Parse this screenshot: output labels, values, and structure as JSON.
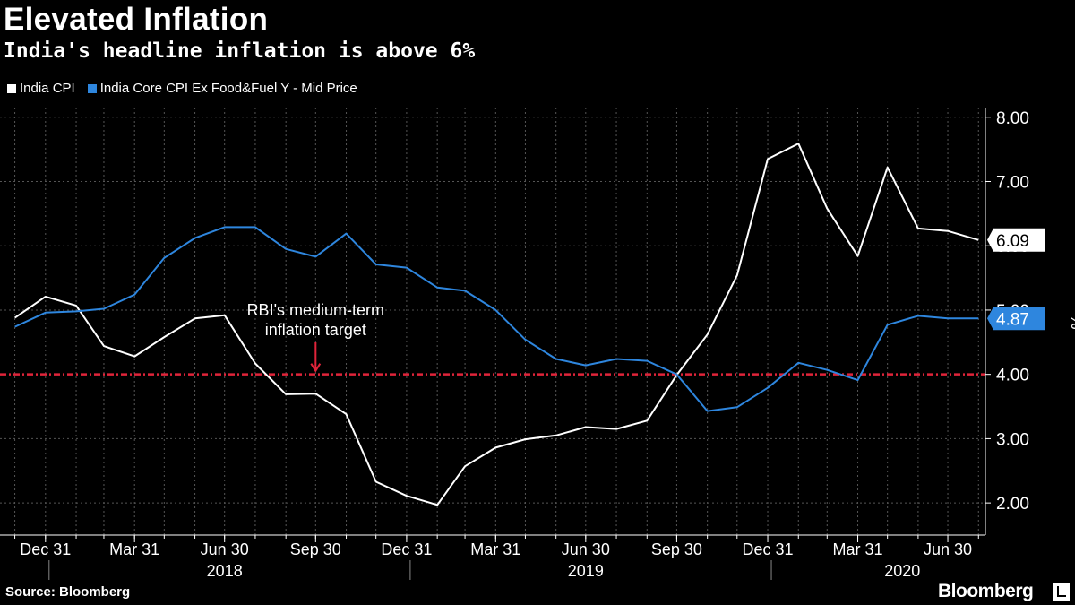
{
  "header": {
    "title": "Elevated Inflation",
    "subtitle": "India's headline inflation is above 6%"
  },
  "footer": {
    "source": "Source: Bloomberg",
    "brand": "Bloomberg"
  },
  "colors": {
    "background": "#000000",
    "india_cpi": "#ffffff",
    "core_cpi": "#2e86de",
    "target_line": "#e0243a",
    "grid": "#555555"
  },
  "chart_data": {
    "type": "line",
    "title": "Elevated Inflation",
    "subtitle": "India's headline inflation is above 6%",
    "ylabel": "%",
    "ylim": [
      1.5,
      8.15
    ],
    "yticks": [
      8.0,
      7.0,
      6.0,
      5.0,
      4.0,
      3.0,
      2.0
    ],
    "ytick_labels": [
      "8.00",
      "7.00",
      "6.00",
      "5.00",
      "4.00",
      "3.00",
      "2.00"
    ],
    "grid": true,
    "legend_position": "top-left",
    "x": [
      "2017-11-30",
      "2017-12-31",
      "2018-01-31",
      "2018-02-28",
      "2018-03-31",
      "2018-04-30",
      "2018-05-31",
      "2018-06-30",
      "2018-07-31",
      "2018-08-31",
      "2018-09-30",
      "2018-10-31",
      "2018-11-30",
      "2018-12-31",
      "2019-01-31",
      "2019-02-28",
      "2019-03-31",
      "2019-04-30",
      "2019-05-31",
      "2019-06-30",
      "2019-07-31",
      "2019-08-31",
      "2019-09-30",
      "2019-10-31",
      "2019-11-30",
      "2019-12-31",
      "2020-01-31",
      "2020-02-29",
      "2020-03-31",
      "2020-04-30",
      "2020-05-31",
      "2020-06-30",
      "2020-07-31"
    ],
    "x_tick_labels": [
      {
        "date": "2017-12-31",
        "label": "Dec 31"
      },
      {
        "date": "2018-03-31",
        "label": "Mar 31"
      },
      {
        "date": "2018-06-30",
        "label": "Jun 30"
      },
      {
        "date": "2018-09-30",
        "label": "Sep 30"
      },
      {
        "date": "2018-12-31",
        "label": "Dec 31"
      },
      {
        "date": "2019-03-31",
        "label": "Mar 31"
      },
      {
        "date": "2019-06-30",
        "label": "Jun 30"
      },
      {
        "date": "2019-09-30",
        "label": "Sep 30"
      },
      {
        "date": "2019-12-31",
        "label": "Dec 31"
      },
      {
        "date": "2020-03-31",
        "label": "Mar 31"
      },
      {
        "date": "2020-06-30",
        "label": "Jun 30"
      }
    ],
    "year_labels": [
      {
        "date": "2018-06-30",
        "label": "2018"
      },
      {
        "date": "2019-06-30",
        "label": "2019"
      },
      {
        "date": "2020-05-15",
        "label": "2020"
      }
    ],
    "year_dividers": [
      "2017-12-31",
      "2018-12-31",
      "2019-12-31"
    ],
    "series": [
      {
        "name": "India CPI",
        "color": "#ffffff",
        "values": [
          4.88,
          5.21,
          5.07,
          4.44,
          4.28,
          4.58,
          4.87,
          4.92,
          4.17,
          3.69,
          3.7,
          3.38,
          2.33,
          2.11,
          1.97,
          2.57,
          2.86,
          2.99,
          3.05,
          3.18,
          3.15,
          3.28,
          3.99,
          4.62,
          5.54,
          7.35,
          7.59,
          6.58,
          5.84,
          7.22,
          6.27,
          6.23,
          6.09
        ],
        "last_value_label": "6.09"
      },
      {
        "name": "India Core CPI Ex Food&Fuel Y - Mid Price",
        "color": "#2e86de",
        "values": [
          4.74,
          4.96,
          4.98,
          5.02,
          5.24,
          5.81,
          6.12,
          6.29,
          6.29,
          5.95,
          5.83,
          6.19,
          5.71,
          5.66,
          5.35,
          5.3,
          5.0,
          4.54,
          4.24,
          4.14,
          4.24,
          4.21,
          4.0,
          3.43,
          3.49,
          3.79,
          4.18,
          4.07,
          3.91,
          4.77,
          4.91,
          4.87,
          4.87
        ],
        "last_value_label": "4.87"
      }
    ],
    "reference_line": {
      "value": 4.0,
      "color": "#e0243a",
      "style": "dash-dot"
    },
    "annotations": [
      {
        "text_lines": [
          "RBI's medium-term",
          "inflation target"
        ],
        "date": "2018-09-30",
        "value": 4.0
      }
    ]
  }
}
